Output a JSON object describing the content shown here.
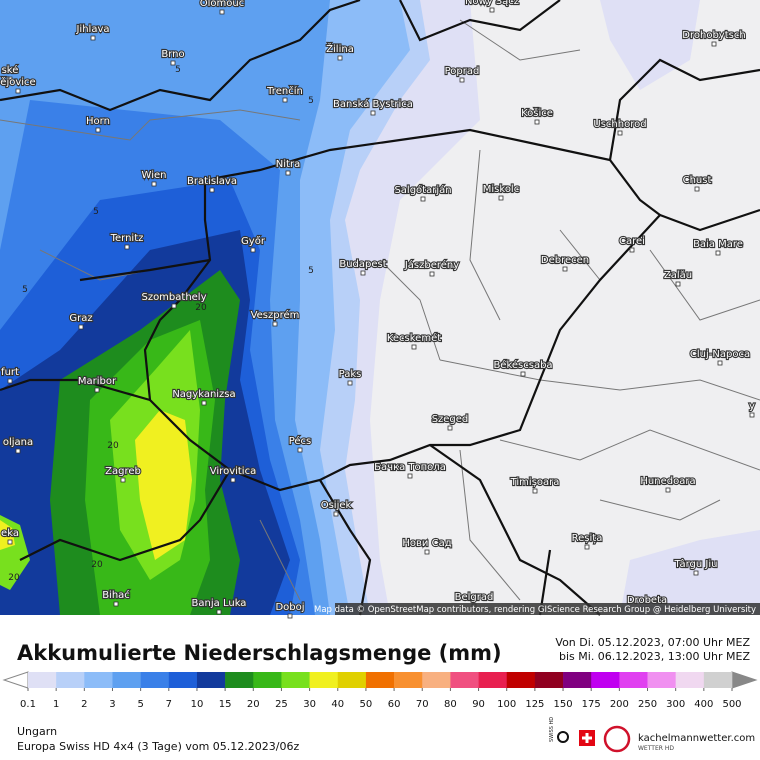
{
  "map": {
    "cities": [
      "Olomouc",
      "Nowy Sącz",
      "Jihlava",
      "Brno",
      "Žilina",
      "Drohobytsch",
      "Poprad",
      "ské",
      "ějovice",
      "Trenčín",
      "Banská Bystrica",
      "Horn",
      "Košice",
      "Uschhorod",
      "Nitra",
      "Wien",
      "Bratislava",
      "Chust",
      "Salgótarján",
      "Miskolc",
      "Ternitz",
      "Győr",
      "Carei",
      "Baia Mare",
      "Budapest",
      "Jászberény",
      "Debrecen",
      "Szombathely",
      "Zalău",
      "Graz",
      "Veszprém",
      "Kecskemét",
      "Cluj-Napoca",
      "furt",
      "Paks",
      "Békéscsaba",
      "Maribor",
      "Nagykanizsa",
      "y",
      "Szeged",
      "oljana",
      "Pécs",
      "Zagreb",
      "Virovitica",
      "Бачка Топола",
      "Timișoara",
      "Hunedoara",
      "Osijek",
      "eka",
      "Нови Сад",
      "Reșița",
      "Târgu Jiu",
      "Bihać",
      "Banja Luka",
      "Doboj",
      "Belgrad",
      "Drobeta"
    ],
    "contour_labels": [
      "5",
      "5",
      "5",
      "5",
      "5",
      "20",
      "20",
      "20",
      "20"
    ],
    "attribution": "Map data © OpenStreetMap contributors, rendering GIScience Research Group @ Heidelberg University"
  },
  "header": {
    "title": "Akkumulierte Niederschlagsmenge (mm)",
    "period_from": "Von Di. 05.12.2023, 07:00 Uhr MEZ",
    "period_to": "bis Mi. 06.12.2023, 13:00 Uhr MEZ"
  },
  "legend": {
    "values": [
      0.1,
      1,
      2,
      3,
      5,
      7,
      10,
      15,
      20,
      25,
      30,
      40,
      50,
      60,
      70,
      80,
      90,
      100,
      125,
      150,
      175,
      200,
      250,
      300,
      400,
      500
    ],
    "colors": [
      "#dfe0f5",
      "#b8d0f8",
      "#8cbcf8",
      "#5ea0f0",
      "#3a80e8",
      "#1e5fd8",
      "#123a9c",
      "#1e8c1e",
      "#38b818",
      "#78e01e",
      "#f0f020",
      "#e0d000",
      "#f07000",
      "#f89030",
      "#f8b080",
      "#f05080",
      "#e82050",
      "#c00000",
      "#900020",
      "#800080",
      "#c000f0",
      "#e040f0",
      "#f090f0",
      "#f0d8f0",
      "#d0d0d0"
    ]
  },
  "footer": {
    "region": "Ungarn",
    "model": "Europa Swiss HD 4x4 (3 Tage) vom 05.12.2023/06z",
    "swiss_label": "SWISS HD",
    "logo_text": "kachelmannwetter.com",
    "logo_sub": "WETTER HD"
  }
}
